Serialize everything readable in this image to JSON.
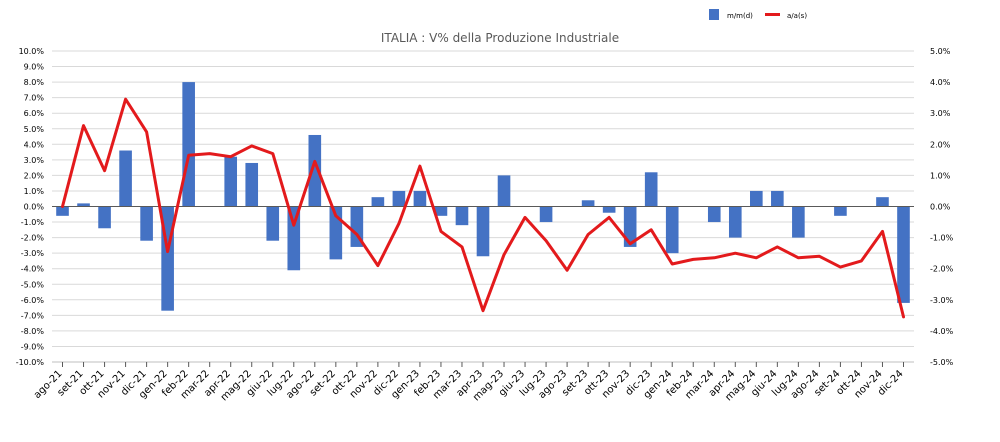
{
  "chart_data": {
    "type": "bar",
    "title": "ITALIA : V% della Produzione Industriale",
    "categories": [
      "ago-21",
      "set-21",
      "ott-21",
      "nov-21",
      "dic-21",
      "gen-22",
      "feb-22",
      "mar-22",
      "apr-22",
      "mag-22",
      "giu-22",
      "lug-22",
      "ago-22",
      "set-22",
      "ott-22",
      "nov-22",
      "dic-22",
      "gen-23",
      "feb-23",
      "mar-23",
      "apr-23",
      "mag-23",
      "giu-23",
      "lug-23",
      "ago-23",
      "set-23",
      "ott-23",
      "nov-23",
      "dic-23",
      "gen-24",
      "feb-24",
      "mar-24",
      "apr-24",
      "mag-24",
      "giu-24",
      "lug-24",
      "ago-24",
      "set-24",
      "ott-24",
      "nov-24",
      "dic-24"
    ],
    "series": [
      {
        "name": "m/m(d)",
        "type": "bar",
        "axis": "left",
        "color": "#4472c4",
        "values": [
          -0.6,
          0.2,
          -1.4,
          3.6,
          -2.2,
          -6.7,
          8.0,
          0,
          3.2,
          2.8,
          -2.2,
          -4.1,
          4.6,
          -3.4,
          -2.6,
          0.6,
          1.0,
          1.0,
          -0.6,
          -1.2,
          -3.2,
          2.0,
          0,
          -1.0,
          0,
          0.4,
          -0.4,
          -2.6,
          2.2,
          -3.0,
          0,
          -1.0,
          -2.0,
          1.0,
          1.0,
          -2.0,
          0,
          -0.6,
          0,
          0.6,
          -6.2
        ]
      },
      {
        "name": "a/a(s)",
        "type": "line",
        "axis": "right",
        "color": "#e31a1c",
        "values": [
          0.0,
          2.6,
          1.15,
          3.45,
          2.4,
          -1.45,
          1.65,
          1.7,
          1.6,
          1.95,
          1.7,
          -0.6,
          1.45,
          -0.3,
          -0.9,
          -1.9,
          -0.55,
          1.3,
          -0.8,
          -1.3,
          -3.35,
          -1.55,
          -0.35,
          -1.1,
          -2.05,
          -0.9,
          -0.35,
          -1.2,
          -0.75,
          -1.85,
          -1.7,
          -1.65,
          -1.5,
          -1.65,
          -1.3,
          -1.65,
          -1.6,
          -1.95,
          -1.75,
          -0.8,
          -3.55
        ]
      }
    ],
    "y_left": {
      "min": -10,
      "max": 10,
      "step": 1,
      "format": "0.0%"
    },
    "y_right": {
      "min": -5,
      "max": 5,
      "step": 1,
      "format": "0.0%"
    },
    "grid": true,
    "legend_position": "top-right"
  }
}
